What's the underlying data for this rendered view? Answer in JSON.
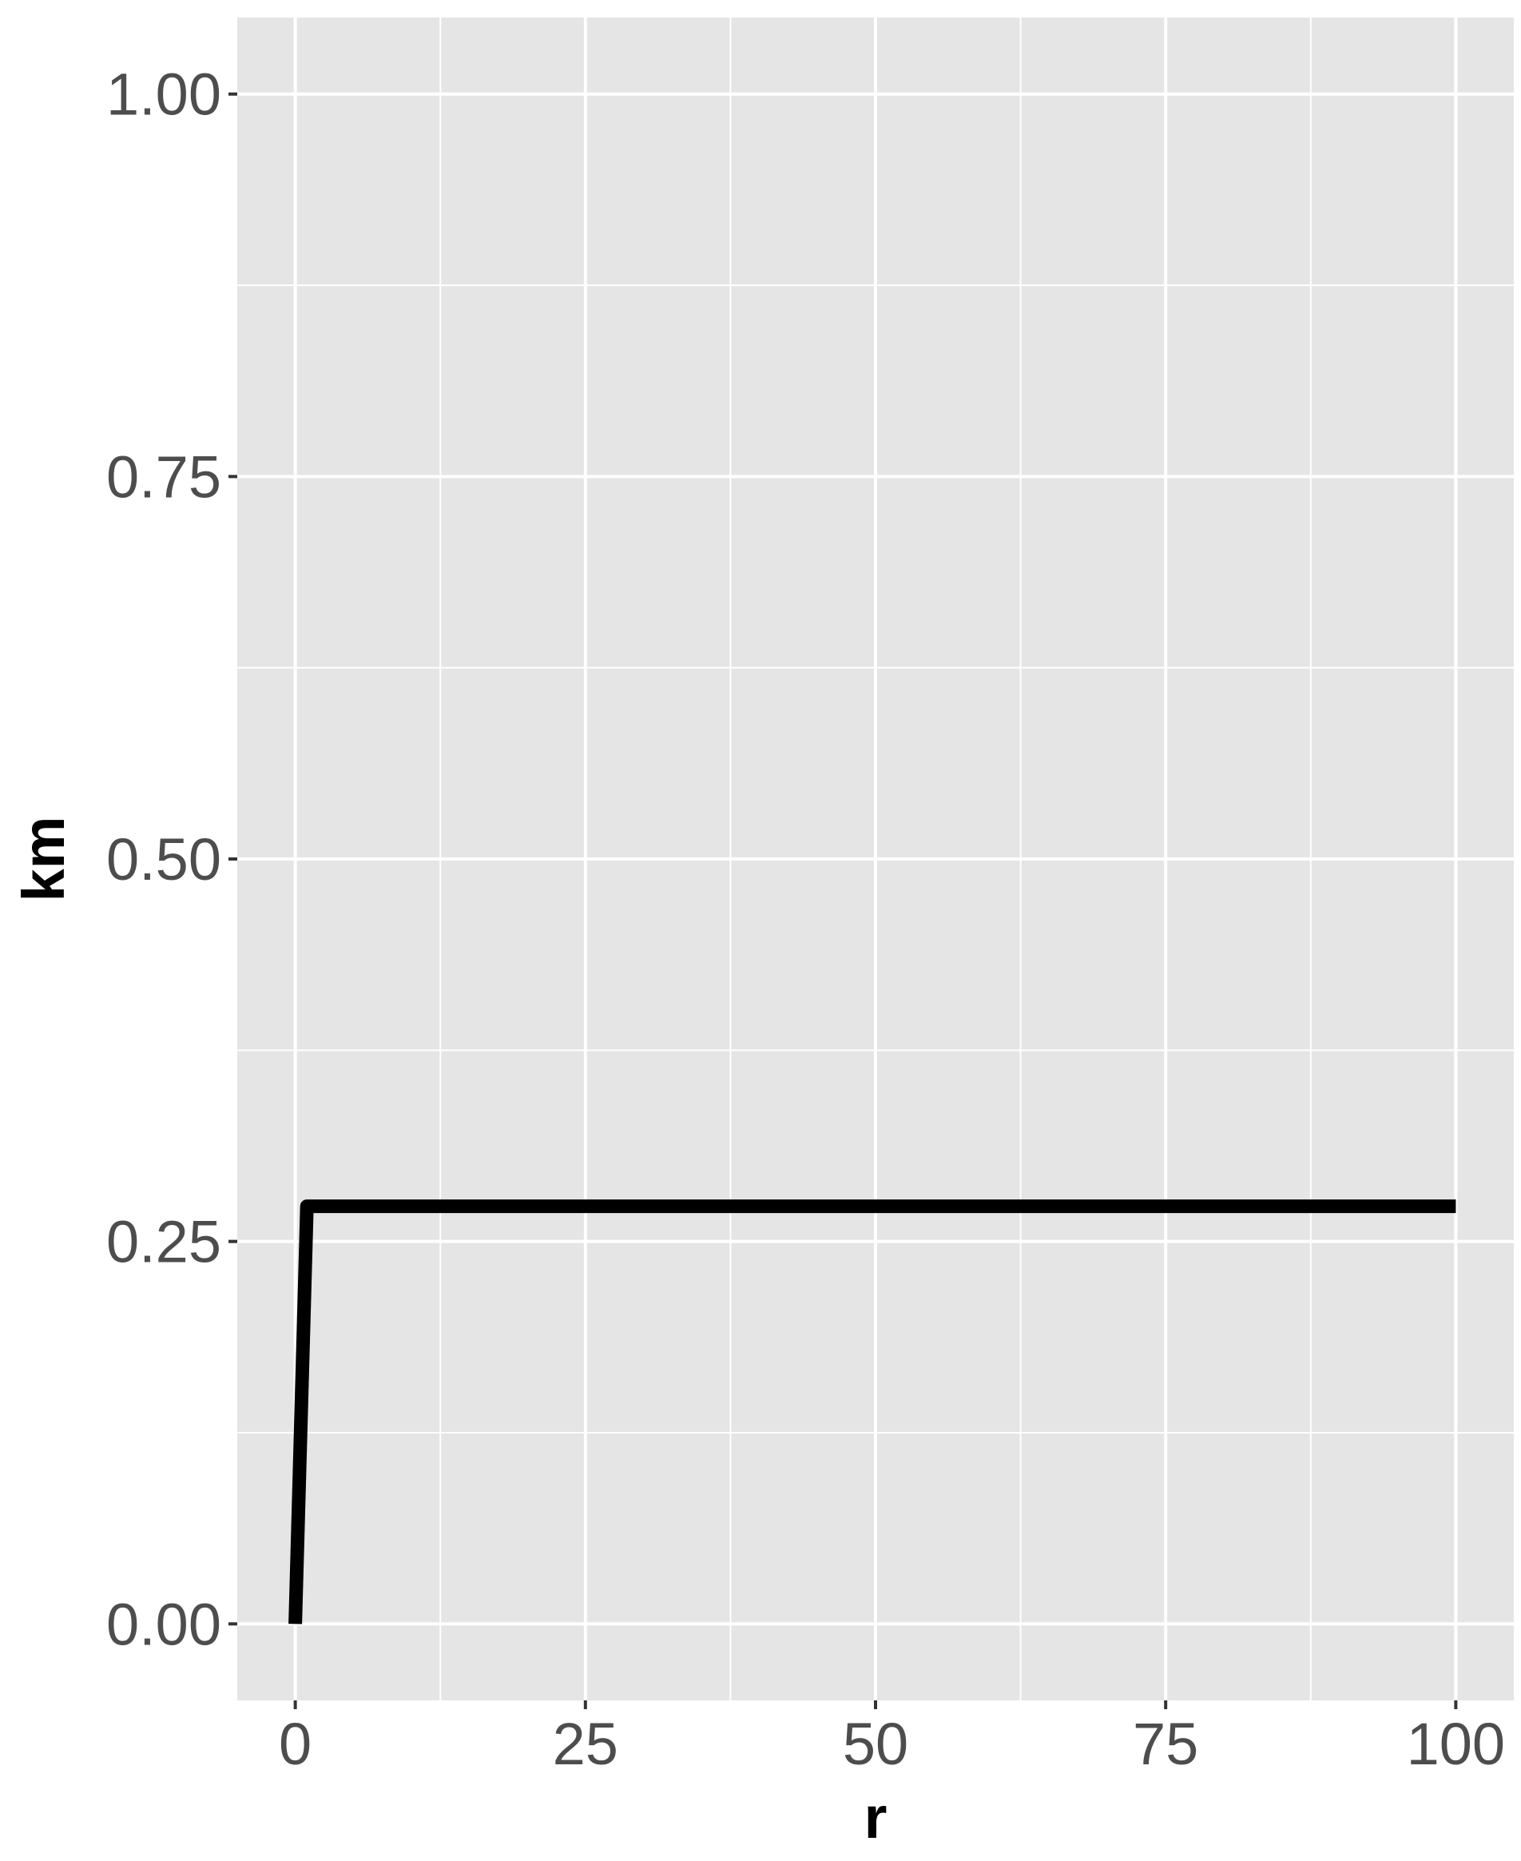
{
  "chart_data": {
    "type": "line",
    "title": "",
    "xlabel": "r",
    "ylabel": "km",
    "xlim": [
      -5,
      105
    ],
    "ylim": [
      -0.05,
      1.05
    ],
    "x_ticks": [
      0,
      25,
      50,
      75,
      100
    ],
    "x_tick_labels": [
      "0",
      "25",
      "50",
      "75",
      "100"
    ],
    "y_ticks": [
      0,
      0.25,
      0.5,
      0.75,
      1.0
    ],
    "y_tick_labels": [
      "0.00",
      "0.25",
      "0.50",
      "0.75",
      "1.00"
    ],
    "x_minor_ticks": [
      12.5,
      37.5,
      62.5,
      87.5
    ],
    "y_minor_ticks": [
      0.125,
      0.375,
      0.625,
      0.875
    ],
    "grid": true,
    "legend": "none",
    "series": [
      {
        "x": [
          0,
          1,
          100
        ],
        "y": [
          0,
          0.273,
          0.273
        ]
      }
    ],
    "colors": {
      "panel_background": "#e5e5e5",
      "grid": "#ffffff",
      "line": "#000000",
      "tick_label": "#4d4d4d",
      "axis_title": "#000000"
    }
  }
}
